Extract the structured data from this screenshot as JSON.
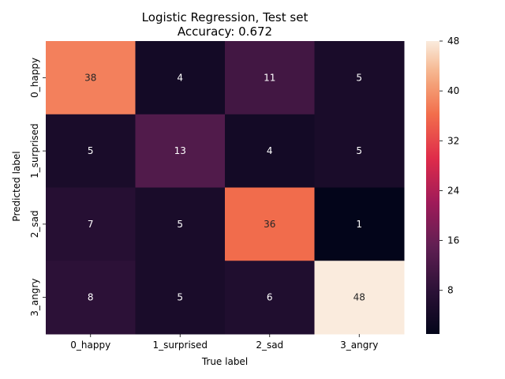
{
  "chart_data": {
    "type": "heatmap",
    "title": "Logistic Regression, Test set",
    "subtitle": "Accuracy: 0.672",
    "xlabel": "True label",
    "ylabel": "Predicted label",
    "x_categories": [
      "0_happy",
      "1_surprised",
      "2_sad",
      "3_angry"
    ],
    "y_categories": [
      "0_happy",
      "1_surprised",
      "2_sad",
      "3_angry"
    ],
    "values": [
      [
        38,
        4,
        11,
        5
      ],
      [
        5,
        13,
        4,
        5
      ],
      [
        7,
        5,
        36,
        1
      ],
      [
        8,
        5,
        6,
        48
      ]
    ],
    "colorbar": {
      "vmin": 1,
      "vmax": 48,
      "ticks": [
        8,
        16,
        24,
        32,
        40,
        48
      ]
    },
    "colormap": "rocket"
  }
}
